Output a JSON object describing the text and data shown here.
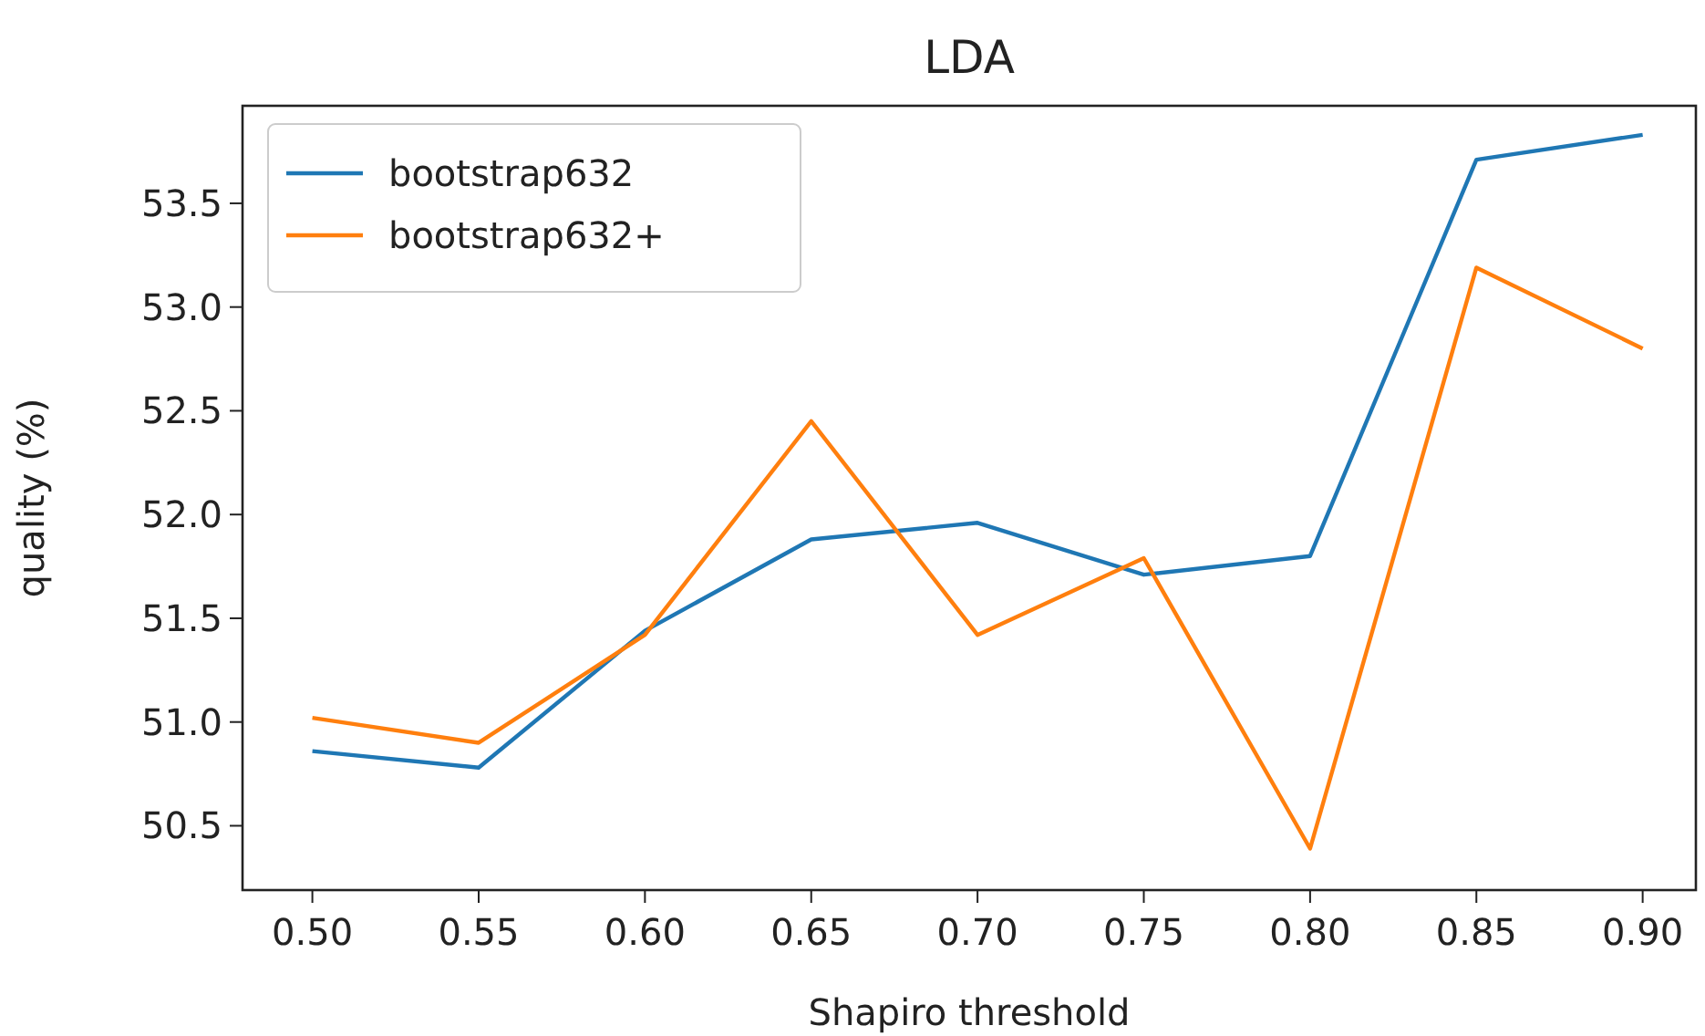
{
  "chart_data": {
    "type": "line",
    "title": "LDA",
    "xlabel": "Shapiro threshold",
    "ylabel": "quality (%)",
    "x": [
      0.5,
      0.55,
      0.6,
      0.65,
      0.7,
      0.75,
      0.8,
      0.85,
      0.9
    ],
    "series": [
      {
        "name": "bootstrap632",
        "color": "#1f77b4",
        "values": [
          50.86,
          50.78,
          51.44,
          51.88,
          51.96,
          51.71,
          51.8,
          53.71,
          53.83
        ]
      },
      {
        "name": "bootstrap632+",
        "color": "#ff7f0e",
        "values": [
          51.02,
          50.9,
          51.42,
          52.45,
          51.42,
          51.79,
          50.39,
          53.19,
          52.8
        ]
      }
    ],
    "xlim": [
      0.479,
      0.916
    ],
    "ylim": [
      50.19,
      53.97
    ],
    "xticks": [
      {
        "value": 0.5,
        "label": "0.50"
      },
      {
        "value": 0.55,
        "label": "0.55"
      },
      {
        "value": 0.6,
        "label": "0.60"
      },
      {
        "value": 0.65,
        "label": "0.65"
      },
      {
        "value": 0.7,
        "label": "0.70"
      },
      {
        "value": 0.75,
        "label": "0.75"
      },
      {
        "value": 0.8,
        "label": "0.80"
      },
      {
        "value": 0.85,
        "label": "0.85"
      },
      {
        "value": 0.9,
        "label": "0.90"
      }
    ],
    "yticks": [
      50.5,
      {
        "value": 51,
        "label": "51.0"
      },
      51.5,
      {
        "value": 52,
        "label": "52.0"
      },
      52.5,
      {
        "value": 53,
        "label": "53.0"
      },
      53.5
    ],
    "legend": "top left",
    "grid": false,
    "marker": "none",
    "line_style": "solid"
  }
}
